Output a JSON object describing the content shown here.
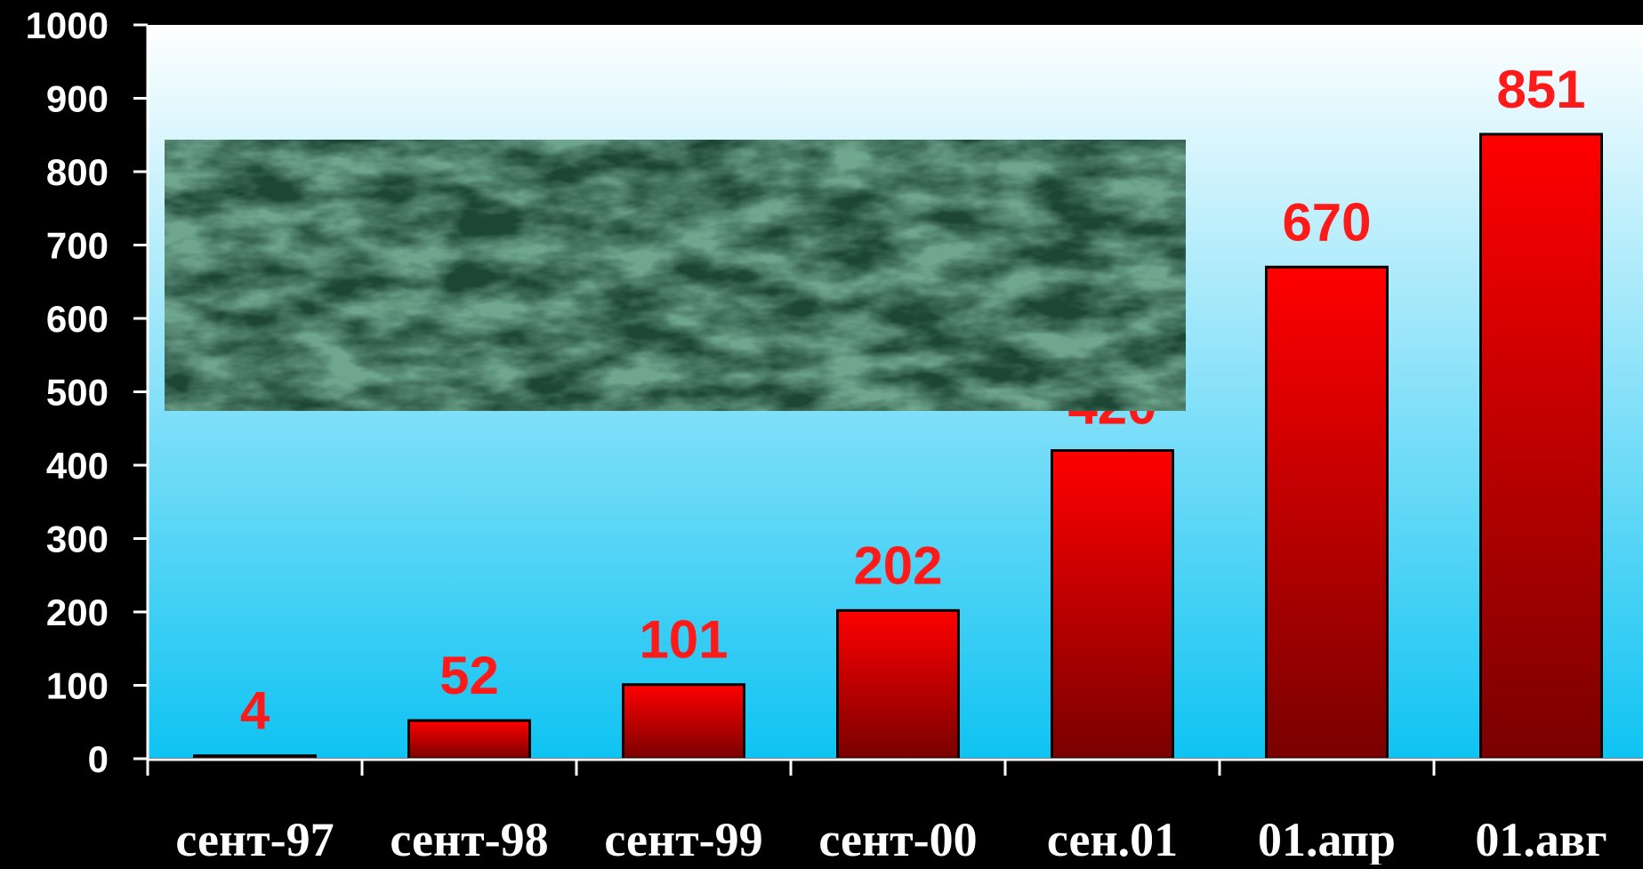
{
  "chart_data": {
    "type": "bar",
    "categories": [
      "сент-97",
      "сент-98",
      "сент-99",
      "сент-00",
      "сен.01",
      "01.апр",
      "01.авг"
    ],
    "values": [
      4,
      52,
      101,
      202,
      420,
      670,
      851
    ],
    "data_labels": [
      "4",
      "52",
      "101",
      "202",
      "420",
      "670",
      "851"
    ],
    "y_ticks": [
      "0",
      "100",
      "200",
      "300",
      "400",
      "500",
      "600",
      "700",
      "800",
      "900",
      "1000"
    ],
    "ylim": [
      0,
      1000
    ],
    "grid": false,
    "legend": "none",
    "colors": {
      "page_background": "#000000",
      "plot_top": "#ffffff",
      "plot_bottom": "#0fc3f2",
      "bar_top": "#ff0000",
      "bar_bottom": "#7a0000",
      "bar_outline": "#000000",
      "data_label": "#ff1a1a",
      "axis": "#ffffff",
      "overlay_texture": "#1f4a36"
    },
    "overlay": {
      "icon": "green-marble-texture-panel"
    }
  }
}
